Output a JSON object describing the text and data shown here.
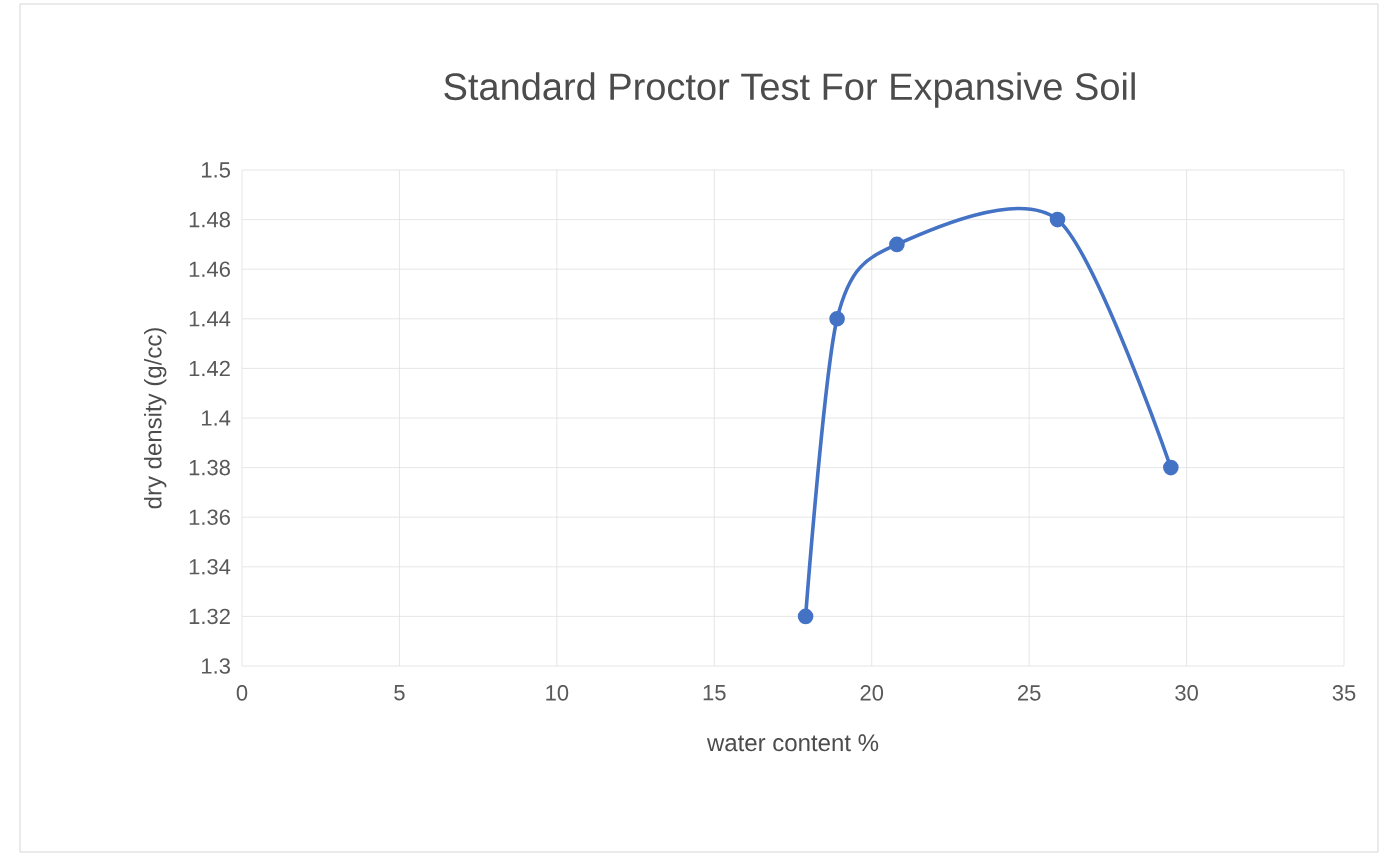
{
  "chart_data": {
    "type": "line",
    "title": "Standard Proctor Test For  Expansive Soil",
    "xlabel": "water content %",
    "ylabel": "dry density (g/cc)",
    "x": [
      17.9,
      18.9,
      20.8,
      25.9,
      29.5
    ],
    "series": [
      {
        "color": "#4472c4",
        "values": [
          1.32,
          1.44,
          1.47,
          1.48,
          1.38
        ]
      }
    ],
    "xlim": [
      0,
      35
    ],
    "xticks": [
      0,
      5,
      10,
      15,
      20,
      25,
      30,
      35
    ],
    "ylim": [
      1.3,
      1.5
    ],
    "yticks": [
      1.3,
      1.32,
      1.34,
      1.36,
      1.38,
      1.4,
      1.42,
      1.44,
      1.46,
      1.48,
      1.5
    ],
    "grid": true,
    "marker": "circle",
    "line_style": "solid"
  }
}
